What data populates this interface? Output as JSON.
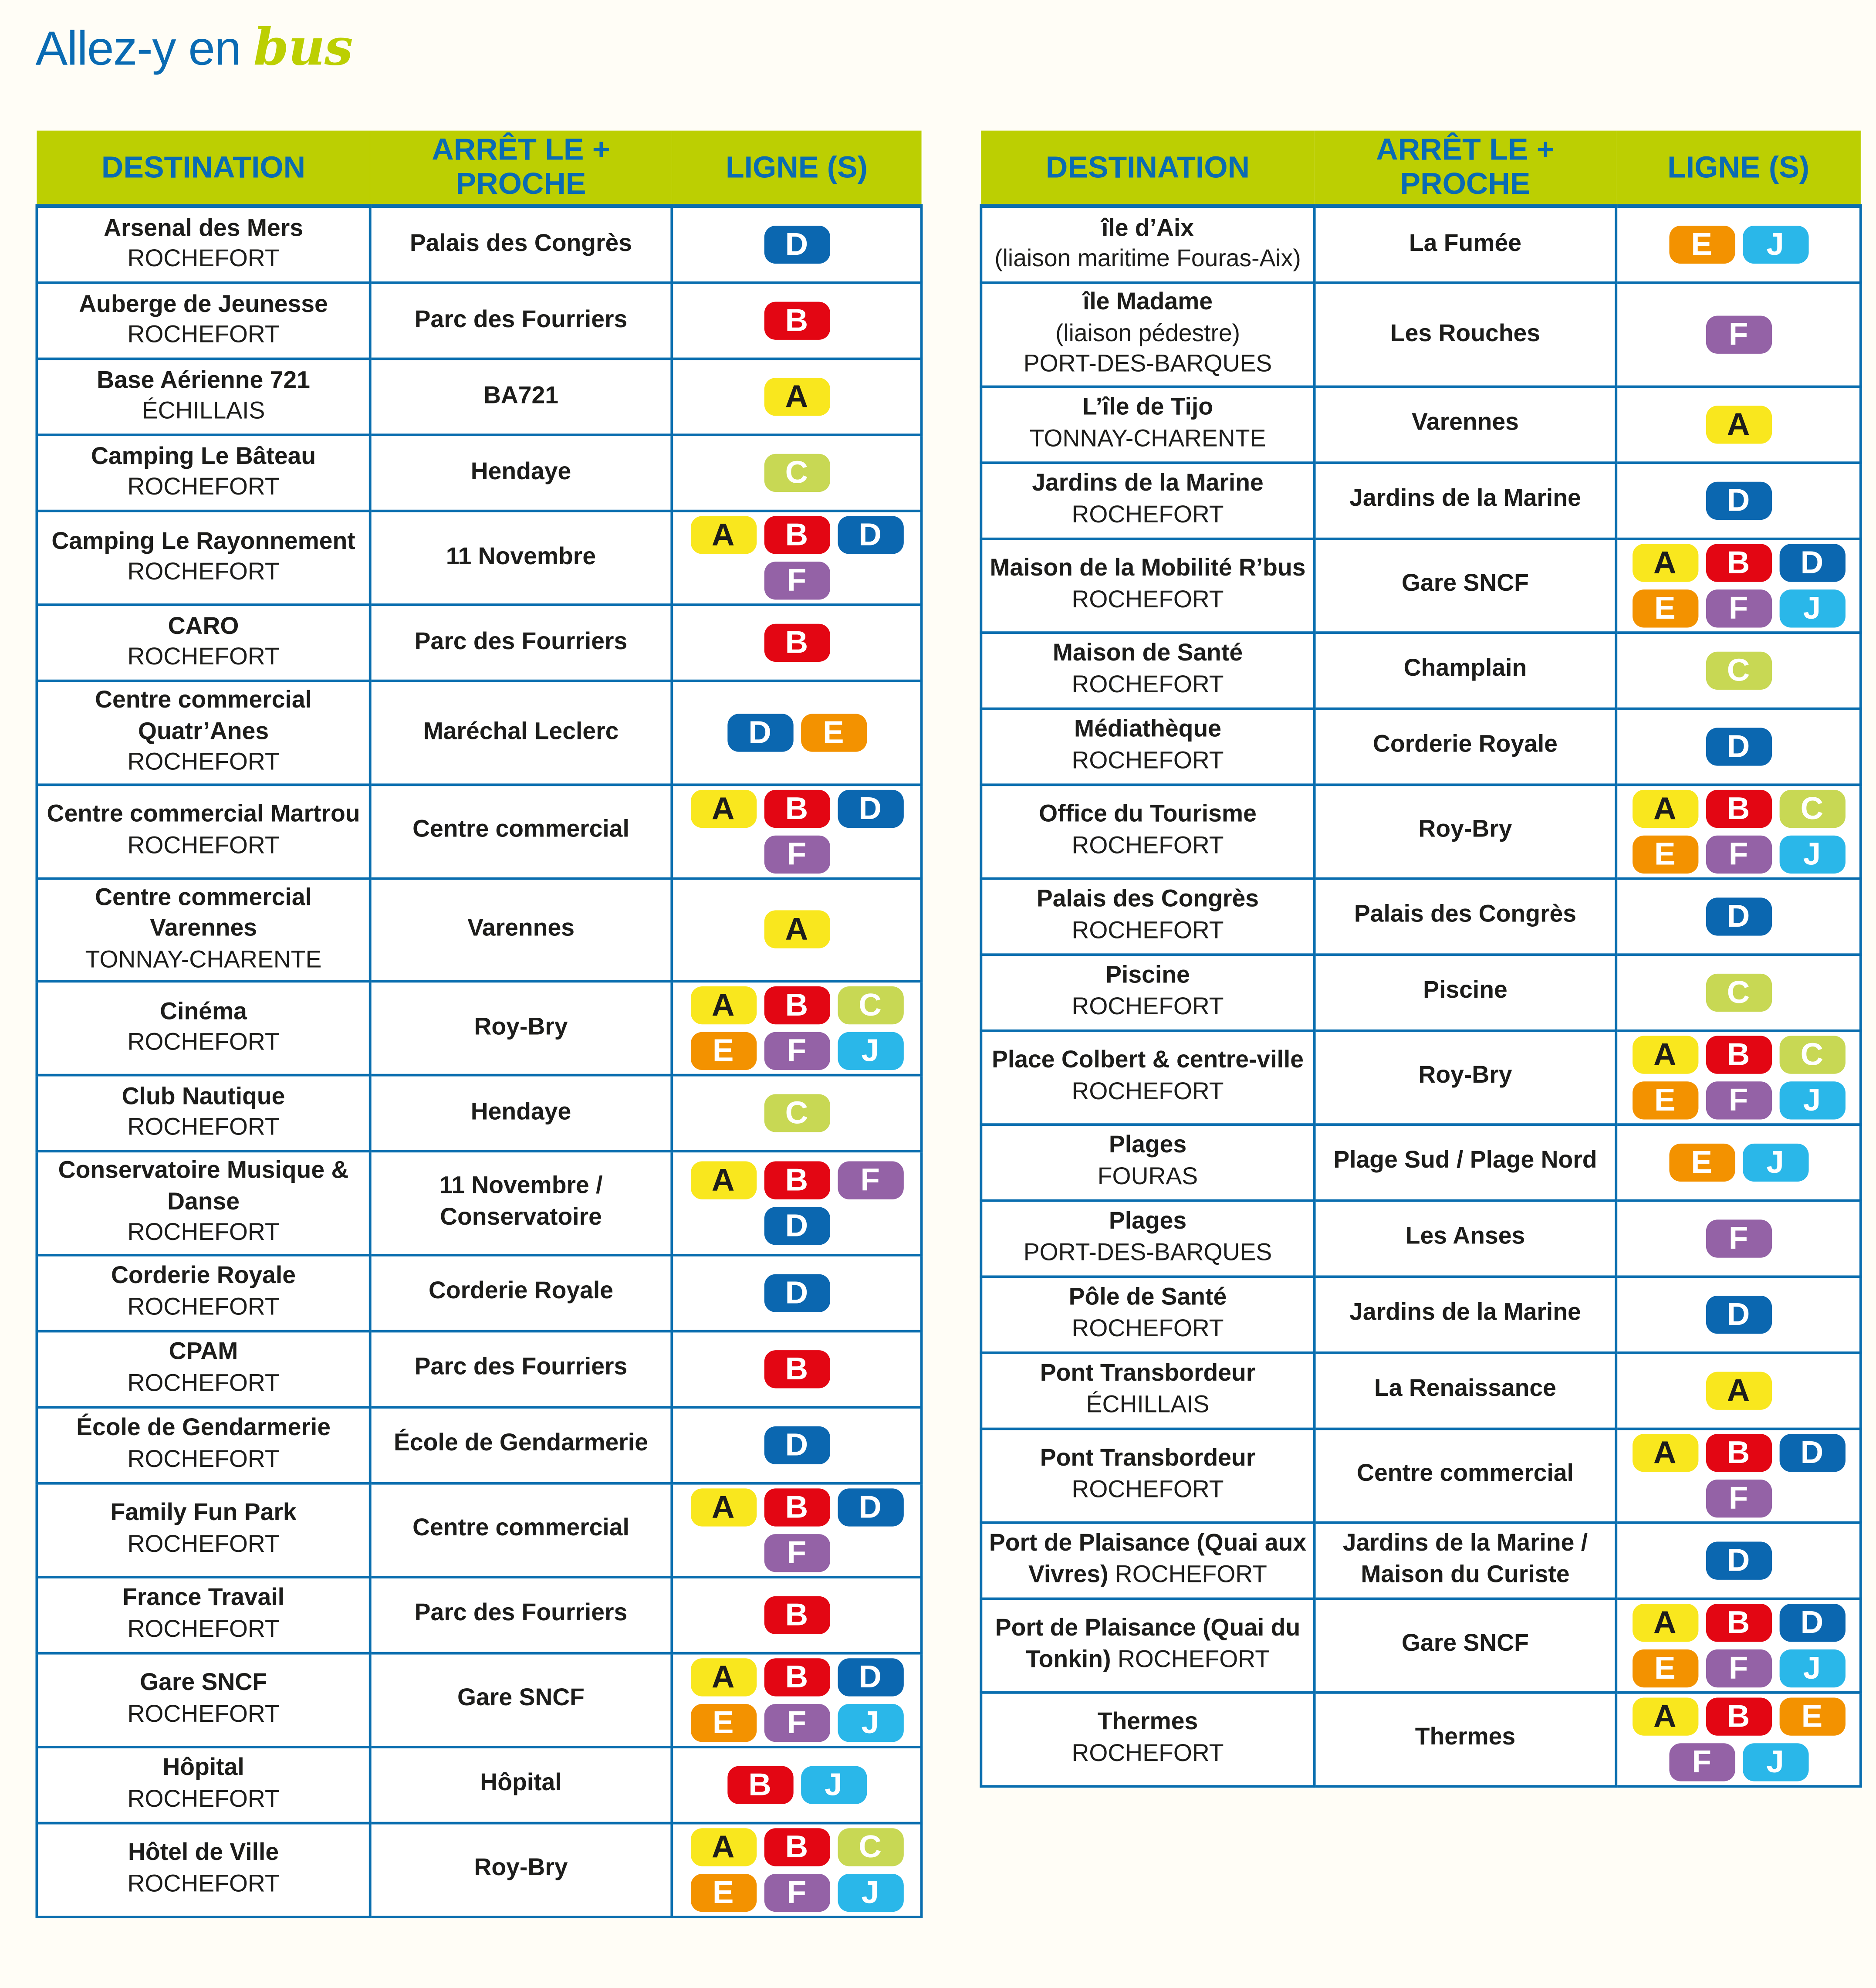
{
  "title": {
    "main": "Allez-y en",
    "accent": "bus"
  },
  "headers": {
    "destination": "DESTINATION",
    "stop": "ARRÊT LE + PROCHE",
    "lines": "LIGNE (S)"
  },
  "line_colors": {
    "A": {
      "bg": "#f9e71e",
      "fg": "#1d1d1b"
    },
    "B": {
      "bg": "#e30613",
      "fg": "#ffffff"
    },
    "C": {
      "bg": "#c8d854",
      "fg": "#ffffff"
    },
    "D": {
      "bg": "#0b67b0",
      "fg": "#ffffff"
    },
    "E": {
      "bg": "#f39200",
      "fg": "#ffffff"
    },
    "F": {
      "bg": "#9462a6",
      "fg": "#ffffff"
    },
    "J": {
      "bg": "#2ab7e9",
      "fg": "#ffffff"
    }
  },
  "left_table": [
    {
      "name": "Arsenal des Mers",
      "sub": [
        "ROCHEFORT"
      ],
      "stop": "Palais des Congrès",
      "lines": [
        "D"
      ]
    },
    {
      "name": "Auberge de Jeunesse",
      "sub": [
        "ROCHEFORT"
      ],
      "stop": "Parc des Fourriers",
      "lines": [
        "B"
      ]
    },
    {
      "name": "Base Aérienne 721",
      "sub": [
        "ÉCHILLAIS"
      ],
      "stop": "BA721",
      "lines": [
        "A"
      ]
    },
    {
      "name": "Camping Le Bâteau",
      "sub": [
        "ROCHEFORT"
      ],
      "stop": "Hendaye",
      "lines": [
        "C"
      ]
    },
    {
      "name": "Camping Le Rayonnement",
      "sub": [
        "ROCHEFORT"
      ],
      "stop": "11 Novembre",
      "lines": [
        "A",
        "B",
        "D",
        "F"
      ]
    },
    {
      "name": "CARO",
      "sub": [
        "ROCHEFORT"
      ],
      "stop": "Parc des Fourriers",
      "lines": [
        "B"
      ]
    },
    {
      "name": "Centre commercial Quatr’Anes",
      "sub": [
        "ROCHEFORT"
      ],
      "stop": "Maréchal Leclerc",
      "lines": [
        "D",
        "E"
      ]
    },
    {
      "name": "Centre commercial Martrou",
      "sub": [
        "ROCHEFORT"
      ],
      "stop": "Centre commercial",
      "lines": [
        "A",
        "B",
        "D",
        "F"
      ]
    },
    {
      "name": "Centre commercial Varennes",
      "sub": [
        "TONNAY-CHARENTE"
      ],
      "stop": "Varennes",
      "lines": [
        "A"
      ]
    },
    {
      "name": "Cinéma",
      "sub": [
        "ROCHEFORT"
      ],
      "stop": "Roy-Bry",
      "lines": [
        "A",
        "B",
        "C",
        "E",
        "F",
        "J"
      ]
    },
    {
      "name": "Club Nautique",
      "sub": [
        "ROCHEFORT"
      ],
      "stop": "Hendaye",
      "lines": [
        "C"
      ]
    },
    {
      "name": "Conservatoire Musique & Danse",
      "sub": [
        "ROCHEFORT"
      ],
      "stop": "11 Novembre / Conservatoire",
      "lines": [
        "A",
        "B",
        "F",
        "D"
      ]
    },
    {
      "name": "Corderie Royale",
      "sub": [
        "ROCHEFORT"
      ],
      "stop": "Corderie Royale",
      "lines": [
        "D"
      ]
    },
    {
      "name": "CPAM",
      "sub": [
        "ROCHEFORT"
      ],
      "stop": "Parc des Fourriers",
      "lines": [
        "B"
      ]
    },
    {
      "name": "École de Gendarmerie",
      "sub": [
        "ROCHEFORT"
      ],
      "stop": "École de Gendarmerie",
      "lines": [
        "D"
      ]
    },
    {
      "name": "Family Fun Park",
      "sub": [
        "ROCHEFORT"
      ],
      "stop": "Centre commercial",
      "lines": [
        "A",
        "B",
        "D",
        "F"
      ]
    },
    {
      "name": "France Travail",
      "sub": [
        "ROCHEFORT"
      ],
      "stop": "Parc des Fourriers",
      "lines": [
        "B"
      ]
    },
    {
      "name": "Gare SNCF",
      "sub": [
        "ROCHEFORT"
      ],
      "stop": "Gare SNCF",
      "lines": [
        "A",
        "B",
        "D",
        "E",
        "F",
        "J"
      ]
    },
    {
      "name": "Hôpital",
      "sub": [
        "ROCHEFORT"
      ],
      "stop": "Hôpital",
      "lines": [
        "B",
        "J"
      ]
    },
    {
      "name": "Hôtel de Ville",
      "sub": [
        "ROCHEFORT"
      ],
      "stop": "Roy-Bry",
      "lines": [
        "A",
        "B",
        "C",
        "E",
        "F",
        "J"
      ]
    }
  ],
  "right_table": [
    {
      "name": "île d’Aix",
      "sub": [
        "(liaison maritime Fouras-Aix)"
      ],
      "stop": "La Fumée",
      "lines": [
        "E",
        "J"
      ]
    },
    {
      "name": "île Madame",
      "sub": [
        "(liaison pédestre)",
        "PORT-DES-BARQUES"
      ],
      "stop": "Les Rouches",
      "lines": [
        "F"
      ]
    },
    {
      "name": "L’île de Tijo",
      "sub": [
        "TONNAY-CHARENTE"
      ],
      "stop": "Varennes",
      "lines": [
        "A"
      ]
    },
    {
      "name": "Jardins de la Marine",
      "sub": [
        "ROCHEFORT"
      ],
      "stop": "Jardins de la Marine",
      "lines": [
        "D"
      ]
    },
    {
      "name": "Maison de la Mobilité R’bus",
      "sub": [
        "ROCHEFORT"
      ],
      "stop": "Gare SNCF",
      "lines": [
        "A",
        "B",
        "D",
        "E",
        "F",
        "J"
      ]
    },
    {
      "name": "Maison de Santé",
      "sub": [
        "ROCHEFORT"
      ],
      "stop": "Champlain",
      "lines": [
        "C"
      ]
    },
    {
      "name": "Médiathèque",
      "sub": [
        "ROCHEFORT"
      ],
      "stop": "Corderie Royale",
      "lines": [
        "D"
      ]
    },
    {
      "name": "Office du Tourisme",
      "sub": [
        "ROCHEFORT"
      ],
      "stop": "Roy-Bry",
      "lines": [
        "A",
        "B",
        "C",
        "E",
        "F",
        "J"
      ]
    },
    {
      "name": "Palais des Congrès",
      "sub": [
        "ROCHEFORT"
      ],
      "stop": "Palais des Congrès",
      "lines": [
        "D"
      ]
    },
    {
      "name": "Piscine",
      "sub": [
        "ROCHEFORT"
      ],
      "stop": "Piscine",
      "lines": [
        "C"
      ]
    },
    {
      "name": "Place Colbert & centre-ville",
      "sub": [
        "ROCHEFORT"
      ],
      "stop": "Roy-Bry",
      "lines": [
        "A",
        "B",
        "C",
        "E",
        "F",
        "J"
      ]
    },
    {
      "name": "Plages",
      "sub": [
        "FOURAS"
      ],
      "stop": "Plage Sud / Plage Nord",
      "lines": [
        "E",
        "J"
      ]
    },
    {
      "name": "Plages",
      "sub": [
        "PORT-DES-BARQUES"
      ],
      "stop": "Les Anses",
      "lines": [
        "F"
      ]
    },
    {
      "name": "Pôle de Santé",
      "sub": [
        "ROCHEFORT"
      ],
      "stop": "Jardins de la Marine",
      "lines": [
        "D"
      ]
    },
    {
      "name": "Pont Transbordeur",
      "sub": [
        "ÉCHILLAIS"
      ],
      "stop": "La Renaissance",
      "lines": [
        "A"
      ]
    },
    {
      "name": "Pont Transbordeur",
      "sub": [
        "ROCHEFORT"
      ],
      "stop": "Centre commercial",
      "lines": [
        "A",
        "B",
        "D",
        "F"
      ]
    },
    {
      "name": "Port de Plaisance (Quai aux Vivres)",
      "sub": [
        "ROCHEFORT"
      ],
      "inline": true,
      "stop": "Jardins de la Marine / Maison du Curiste",
      "lines": [
        "D"
      ]
    },
    {
      "name": "Port de Plaisance (Quai du Tonkin)",
      "sub": [
        "ROCHEFORT"
      ],
      "inline": true,
      "stop": "Gare SNCF",
      "lines": [
        "A",
        "B",
        "D",
        "E",
        "F",
        "J"
      ]
    },
    {
      "name": "Thermes",
      "sub": [
        "ROCHEFORT"
      ],
      "stop": "Thermes",
      "lines": [
        "A",
        "B",
        "E",
        "F",
        "J"
      ]
    }
  ]
}
